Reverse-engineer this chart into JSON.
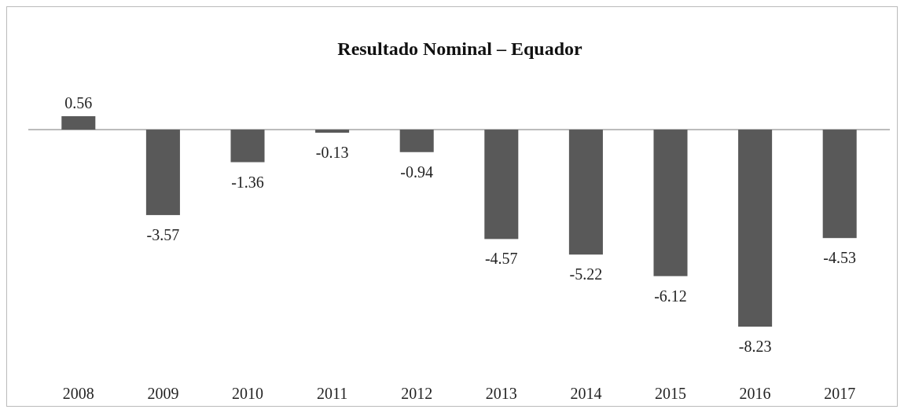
{
  "chart_data": {
    "type": "bar",
    "title": "Resultado Nominal – Equador",
    "categories": [
      "2008",
      "2009",
      "2010",
      "2011",
      "2012",
      "2013",
      "2014",
      "2015",
      "2016",
      "2017"
    ],
    "values": [
      0.56,
      -3.57,
      -1.36,
      -0.13,
      -0.94,
      -4.57,
      -5.22,
      -6.12,
      -8.23,
      -4.53
    ],
    "color": "#595959",
    "data_labels": true
  }
}
